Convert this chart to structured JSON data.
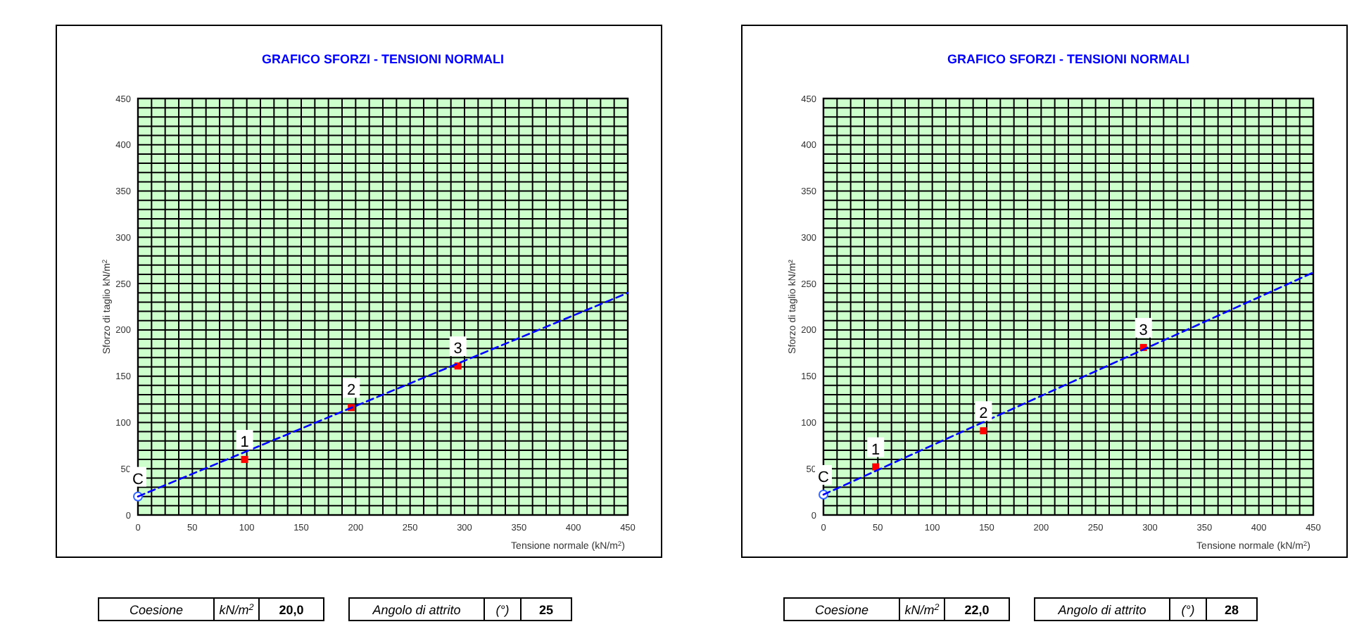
{
  "chart_data": [
    {
      "type": "scatter",
      "title": "GRAFICO SFORZI - TENSIONI NORMALI",
      "xlabel": "Tensione normale (kN/m$^{2}$)",
      "ylabel": "Sforzo di taglio  kN/m$^{2}$",
      "xlim": [
        0,
        450
      ],
      "ylim": [
        0,
        450
      ],
      "grid": true,
      "xticks": [
        0,
        {
          "value": 12.5,
          "label": null
        },
        {
          "value": 25,
          "label": null
        },
        {
          "value": 37.5,
          "label": null
        },
        50,
        {
          "value": 62.5,
          "label": null
        },
        {
          "value": 75,
          "label": null
        },
        {
          "value": 87.5,
          "label": null
        },
        100,
        {
          "value": 112.5,
          "label": null
        },
        {
          "value": 125,
          "label": null
        },
        {
          "value": 137.5,
          "label": null
        },
        150,
        {
          "value": 162.5,
          "label": null
        },
        {
          "value": 175,
          "label": null
        },
        {
          "value": 187.5,
          "label": null
        },
        200,
        {
          "value": 212.5,
          "label": null
        },
        {
          "value": 225,
          "label": null
        },
        {
          "value": 237.5,
          "label": null
        },
        250,
        {
          "value": 262.5,
          "label": null
        },
        {
          "value": 275,
          "label": null
        },
        {
          "value": 287.5,
          "label": null
        },
        300,
        {
          "value": 312.5,
          "label": null
        },
        {
          "value": 325,
          "label": null
        },
        {
          "value": 337.5,
          "label": null
        },
        350,
        {
          "value": 362.5,
          "label": null
        },
        {
          "value": 375,
          "label": null
        },
        {
          "value": 387.5,
          "label": null
        },
        400,
        {
          "value": 412.5,
          "label": null
        },
        {
          "value": 425,
          "label": null
        },
        {
          "value": 437.5,
          "label": null
        },
        450
      ],
      "yticks": [
        0,
        {
          "value": 10,
          "label": null
        },
        {
          "value": 20,
          "label": null
        },
        {
          "value": 30,
          "label": null
        },
        {
          "value": 40,
          "label": null
        },
        50,
        {
          "value": 60,
          "label": null
        },
        {
          "value": 70,
          "label": null
        },
        {
          "value": 80,
          "label": null
        },
        {
          "value": 90,
          "label": null
        },
        100,
        {
          "value": 110,
          "label": null
        },
        {
          "value": 120,
          "label": null
        },
        {
          "value": 130,
          "label": null
        },
        {
          "value": 140,
          "label": null
        },
        150,
        {
          "value": 160,
          "label": null
        },
        {
          "value": 170,
          "label": null
        },
        {
          "value": 180,
          "label": null
        },
        {
          "value": 190,
          "label": null
        },
        200,
        {
          "value": 210,
          "label": null
        },
        {
          "value": 220,
          "label": null
        },
        {
          "value": 230,
          "label": null
        },
        {
          "value": 240,
          "label": null
        },
        250,
        {
          "value": 260,
          "label": null
        },
        {
          "value": 270,
          "label": null
        },
        {
          "value": 280,
          "label": null
        },
        {
          "value": 290,
          "label": null
        },
        300,
        {
          "value": 310,
          "label": null
        },
        {
          "value": 320,
          "label": null
        },
        {
          "value": 330,
          "label": null
        },
        {
          "value": 340,
          "label": null
        },
        350,
        {
          "value": 360,
          "label": null
        },
        {
          "value": 370,
          "label": null
        },
        {
          "value": 380,
          "label": null
        },
        {
          "value": 390,
          "label": null
        },
        400,
        {
          "value": 410,
          "label": null
        },
        {
          "value": 420,
          "label": null
        },
        {
          "value": 430,
          "label": null
        },
        {
          "value": 440,
          "label": null
        },
        450
      ],
      "series": [
        {
          "type": "scatter",
          "color": "#ff0000",
          "marker": "square",
          "x": [
            98,
            196,
            294
          ],
          "values": [
            60,
            116,
            161
          ]
        },
        {
          "type": "scatter",
          "color": "#3366ff",
          "marker": "circle",
          "x": [
            0
          ],
          "values": [
            20
          ]
        },
        {
          "type": "line",
          "color": "#0000ff",
          "line_style": "dashed",
          "marker": "none",
          "x": [
            0,
            450
          ],
          "values": [
            20,
            240
          ]
        }
      ],
      "annotations": [
        {
          "text": "C",
          "x": 0,
          "y": 20
        },
        {
          "text": "1",
          "x": 98,
          "y": 60
        },
        {
          "text": "2",
          "x": 196,
          "y": 116
        },
        {
          "text": "3",
          "x": 294,
          "y": 161
        },
        "Coesione",
        "kN/m$^{2}$",
        "20,0",
        "Angolo di attrito",
        "(°)",
        "25"
      ]
    },
    {
      "type": "scatter",
      "title": "GRAFICO SFORZI - TENSIONI NORMALI",
      "xlabel": "Tensione normale (kN/m$^{2}$)",
      "ylabel": "Sforzo di taglio  kN/m²",
      "xlim": [
        0,
        450
      ],
      "ylim": [
        0,
        450
      ],
      "grid": true,
      "xticks": [
        0,
        {
          "value": 12.5,
          "label": null
        },
        {
          "value": 25,
          "label": null
        },
        {
          "value": 37.5,
          "label": null
        },
        50,
        {
          "value": 62.5,
          "label": null
        },
        {
          "value": 75,
          "label": null
        },
        {
          "value": 87.5,
          "label": null
        },
        100,
        {
          "value": 112.5,
          "label": null
        },
        {
          "value": 125,
          "label": null
        },
        {
          "value": 137.5,
          "label": null
        },
        150,
        {
          "value": 162.5,
          "label": null
        },
        {
          "value": 175,
          "label": null
        },
        {
          "value": 187.5,
          "label": null
        },
        200,
        {
          "value": 212.5,
          "label": null
        },
        {
          "value": 225,
          "label": null
        },
        {
          "value": 237.5,
          "label": null
        },
        250,
        {
          "value": 262.5,
          "label": null
        },
        {
          "value": 275,
          "label": null
        },
        {
          "value": 287.5,
          "label": null
        },
        300,
        {
          "value": 312.5,
          "label": null
        },
        {
          "value": 325,
          "label": null
        },
        {
          "value": 337.5,
          "label": null
        },
        350,
        {
          "value": 362.5,
          "label": null
        },
        {
          "value": 375,
          "label": null
        },
        {
          "value": 387.5,
          "label": null
        },
        400,
        {
          "value": 412.5,
          "label": null
        },
        {
          "value": 425,
          "label": null
        },
        {
          "value": 437.5,
          "label": null
        },
        450
      ],
      "yticks": [
        0,
        {
          "value": 10,
          "label": null
        },
        {
          "value": 20,
          "label": null
        },
        {
          "value": 30,
          "label": null
        },
        {
          "value": 40,
          "label": null
        },
        50,
        {
          "value": 60,
          "label": null
        },
        {
          "value": 70,
          "label": null
        },
        {
          "value": 80,
          "label": null
        },
        {
          "value": 90,
          "label": null
        },
        100,
        {
          "value": 110,
          "label": null
        },
        {
          "value": 120,
          "label": null
        },
        {
          "value": 130,
          "label": null
        },
        {
          "value": 140,
          "label": null
        },
        150,
        {
          "value": 160,
          "label": null
        },
        {
          "value": 170,
          "label": null
        },
        {
          "value": 180,
          "label": null
        },
        {
          "value": 190,
          "label": null
        },
        200,
        {
          "value": 210,
          "label": null
        },
        {
          "value": 220,
          "label": null
        },
        {
          "value": 230,
          "label": null
        },
        {
          "value": 240,
          "label": null
        },
        250,
        {
          "value": 260,
          "label": null
        },
        {
          "value": 270,
          "label": null
        },
        {
          "value": 280,
          "label": null
        },
        {
          "value": 290,
          "label": null
        },
        300,
        {
          "value": 310,
          "label": null
        },
        {
          "value": 320,
          "label": null
        },
        {
          "value": 330,
          "label": null
        },
        {
          "value": 340,
          "label": null
        },
        350,
        {
          "value": 360,
          "label": null
        },
        {
          "value": 370,
          "label": null
        },
        {
          "value": 380,
          "label": null
        },
        {
          "value": 390,
          "label": null
        },
        400,
        {
          "value": 410,
          "label": null
        },
        {
          "value": 420,
          "label": null
        },
        {
          "value": 430,
          "label": null
        },
        {
          "value": 440,
          "label": null
        },
        450
      ],
      "series": [
        {
          "type": "scatter",
          "color": "#ff0000",
          "marker": "square",
          "x": [
            48,
            147,
            294
          ],
          "values": [
            52,
            91,
            181
          ]
        },
        {
          "type": "scatter",
          "color": "#3366ff",
          "marker": "circle",
          "x": [
            0
          ],
          "values": [
            22
          ]
        },
        {
          "type": "line",
          "color": "#0000ff",
          "line_style": "dashed",
          "marker": "none",
          "x": [
            0,
            450
          ],
          "values": [
            22,
            262
          ]
        }
      ],
      "annotations": [
        {
          "text": "C",
          "x": 0,
          "y": 22
        },
        {
          "text": "1",
          "x": 48,
          "y": 52
        },
        {
          "text": "2",
          "x": 147,
          "y": 91
        },
        {
          "text": "3",
          "x": 294,
          "y": 181
        },
        "Coesione",
        "kN/m$^{2}$",
        "22,0",
        "Angolo di attrito",
        "(°)",
        "28"
      ]
    }
  ]
}
